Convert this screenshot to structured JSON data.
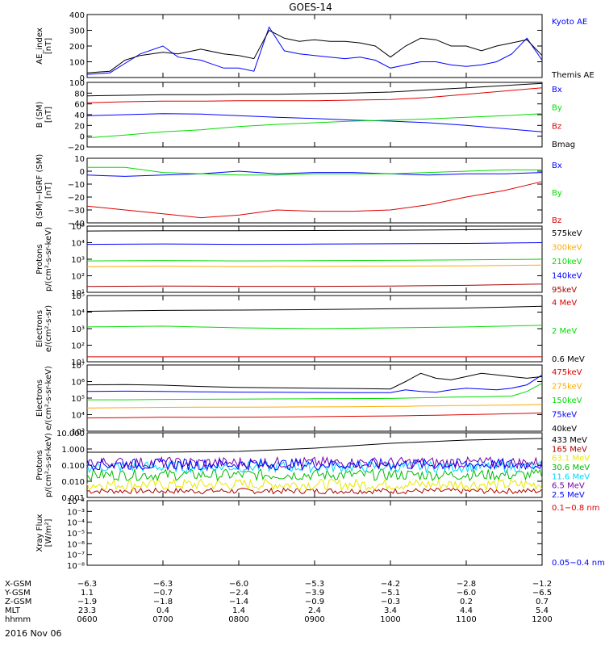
{
  "title": "GOES-14",
  "date_label": "2016 Nov 06",
  "colors": {
    "black": "#000000",
    "blue": "#0000ff",
    "green": "#00dd00",
    "red": "#dd0000",
    "orange": "#ffaa00",
    "darkred": "#aa0000",
    "cyan": "#00d8ff",
    "purple": "#7700aa",
    "yellow": "#e8e800",
    "darkgreen": "#00bb00"
  },
  "chart_data": [
    {
      "type": "line",
      "id": "ae",
      "ylabel": [
        "AE_index",
        "[nT]"
      ],
      "ylim": [
        0,
        400
      ],
      "yscale": "linear",
      "yticks": [
        "0",
        "100",
        "200",
        "300",
        "400"
      ],
      "yticks_values": [
        0,
        100,
        200,
        300,
        400
      ],
      "x": [
        0,
        0.3,
        0.5,
        0.7,
        1.0,
        1.2,
        1.5,
        1.8,
        2.0,
        2.2,
        2.4,
        2.6,
        2.8,
        3.0,
        3.2,
        3.4,
        3.6,
        3.8,
        4.0,
        4.2,
        4.4,
        4.6,
        4.8,
        5.0,
        5.2,
        5.4,
        5.6,
        5.8,
        6.0
      ],
      "series": [
        {
          "name": "Kyoto AE",
          "color": "#0000ff",
          "values": [
            20,
            30,
            90,
            150,
            200,
            130,
            110,
            60,
            60,
            40,
            320,
            170,
            150,
            140,
            130,
            120,
            130,
            110,
            60,
            80,
            100,
            100,
            80,
            70,
            80,
            100,
            150,
            250,
            110
          ]
        },
        {
          "name": "Themis AE",
          "color": "#000000",
          "values": [
            30,
            40,
            110,
            140,
            160,
            150,
            180,
            150,
            140,
            120,
            300,
            250,
            230,
            240,
            230,
            230,
            220,
            200,
            130,
            200,
            250,
            240,
            200,
            200,
            170,
            200,
            220,
            240,
            140
          ]
        }
      ]
    },
    {
      "type": "line",
      "id": "bsm",
      "ylabel": [
        "B (SM)",
        "[nT]"
      ],
      "ylim": [
        -20,
        100
      ],
      "yscale": "linear",
      "yticks": [
        "−20",
        "0",
        "20",
        "40",
        "60",
        "80",
        "100"
      ],
      "yticks_values": [
        -20,
        0,
        20,
        40,
        60,
        80,
        100
      ],
      "x": [
        0,
        0.5,
        1,
        1.5,
        2,
        2.5,
        3,
        3.5,
        4,
        4.5,
        5,
        5.5,
        6
      ],
      "series": [
        {
          "name": "Bx",
          "color": "#0000ff",
          "values": [
            38,
            40,
            42,
            41,
            38,
            35,
            33,
            30,
            28,
            25,
            20,
            14,
            8
          ]
        },
        {
          "name": "By",
          "color": "#00dd00",
          "values": [
            -3,
            2,
            8,
            12,
            18,
            22,
            25,
            28,
            30,
            32,
            35,
            38,
            42
          ]
        },
        {
          "name": "Bz",
          "color": "#dd0000",
          "values": [
            62,
            64,
            65,
            65,
            66,
            66,
            66,
            67,
            68,
            72,
            78,
            84,
            90
          ]
        },
        {
          "name": "Bmag",
          "color": "#000000",
          "values": [
            75,
            76,
            77,
            77,
            78,
            78,
            79,
            80,
            82,
            86,
            90,
            94,
            98
          ]
        }
      ]
    },
    {
      "type": "line",
      "id": "bigrf",
      "ylabel": [
        "B (SM)−IGRF (SM)",
        "[nT]"
      ],
      "ylim": [
        -40,
        10
      ],
      "yscale": "linear",
      "yticks": [
        "−40",
        "−30",
        "−20",
        "−10",
        "0",
        "10"
      ],
      "yticks_values": [
        -40,
        -30,
        -20,
        -10,
        0,
        10
      ],
      "x": [
        0,
        0.5,
        1,
        1.5,
        2,
        2.5,
        3,
        3.5,
        4,
        4.5,
        5,
        5.5,
        6
      ],
      "series": [
        {
          "name": "Bx",
          "color": "#0000ff",
          "values": [
            -3,
            -4,
            -3,
            -2,
            0,
            -2,
            -1,
            -1,
            -2,
            -3,
            -2,
            -2,
            -1
          ]
        },
        {
          "name": "By",
          "color": "#00dd00",
          "values": [
            3,
            3,
            -1,
            -2,
            -3,
            -3,
            -2,
            -2,
            -2,
            -1,
            0,
            1,
            1
          ]
        },
        {
          "name": "Bz",
          "color": "#dd0000",
          "values": [
            -27,
            -30,
            -33,
            -36,
            -34,
            -30,
            -31,
            -31,
            -30,
            -26,
            -20,
            -15,
            -8
          ]
        }
      ]
    },
    {
      "type": "line",
      "id": "prot1",
      "ylabel": [
        "Protons",
        "p/(cm²-s-sr-keV)"
      ],
      "ylim": [
        1,
        5
      ],
      "yscale": "log10",
      "yticks": [
        "10¹",
        "10²",
        "10³",
        "10⁴",
        "10⁵"
      ],
      "yticks_values": [
        1,
        2,
        3,
        4,
        5
      ],
      "x": [
        0,
        1,
        2,
        3,
        4,
        5,
        6
      ],
      "series": [
        {
          "name": "575keV",
          "color": "#000000",
          "values": [
            4.7,
            4.72,
            4.72,
            4.73,
            4.75,
            4.78,
            4.82
          ]
        },
        {
          "name": "300keV",
          "color": "#ffaa00",
          "values": [
            2.55,
            2.57,
            2.55,
            2.56,
            2.58,
            2.6,
            2.65
          ]
        },
        {
          "name": "210keV",
          "color": "#00dd00",
          "values": [
            2.9,
            2.92,
            2.9,
            2.91,
            2.93,
            2.96,
            3.0
          ]
        },
        {
          "name": "140keV",
          "color": "#0000ff",
          "values": [
            3.9,
            3.92,
            3.9,
            3.91,
            3.93,
            3.95,
            4.0
          ]
        },
        {
          "name": "95keV",
          "color": "#aa0000",
          "values": [
            1.35,
            1.38,
            1.36,
            1.36,
            1.38,
            1.42,
            1.5
          ]
        }
      ]
    },
    {
      "type": "line",
      "id": "elec1",
      "ylabel": [
        "Electrons",
        "e/(cm²-s-sr)"
      ],
      "ylim": [
        1,
        5
      ],
      "yscale": "log10",
      "yticks": [
        "10¹",
        "10²",
        "10³",
        "10⁴",
        "10⁵"
      ],
      "yticks_values": [
        1,
        2,
        3,
        4,
        5
      ],
      "x": [
        0,
        1,
        2,
        3,
        4,
        5,
        6
      ],
      "series": [
        {
          "name": "4 MeV",
          "color": "#dd0000",
          "values": [
            1.3,
            1.3,
            1.3,
            1.3,
            1.3,
            1.3,
            1.3
          ]
        },
        {
          "name": "2 MeV",
          "color": "#00dd00",
          "values": [
            3.1,
            3.15,
            3.05,
            3.0,
            3.05,
            3.1,
            3.2
          ]
        },
        {
          "name": "0.6 MeV",
          "color": "#000000",
          "values": [
            4.05,
            4.1,
            4.12,
            4.15,
            4.2,
            4.25,
            4.35
          ]
        }
      ]
    },
    {
      "type": "line",
      "id": "elec2",
      "ylabel": [
        "Electrons",
        "e/(cm²-s-sr-keV)"
      ],
      "ylim": [
        3,
        7
      ],
      "yscale": "log10",
      "yticks": [
        "10³",
        "10⁴",
        "10⁵",
        "10⁶",
        "10⁷"
      ],
      "yticks_values": [
        3,
        4,
        5,
        6,
        7
      ],
      "x": [
        0,
        0.5,
        1,
        1.5,
        2,
        2.5,
        3,
        3.5,
        4,
        4.2,
        4.4,
        4.6,
        4.8,
        5.0,
        5.2,
        5.4,
        5.6,
        5.8,
        6
      ],
      "series": [
        {
          "name": "475keV",
          "color": "#dd0000",
          "values": [
            3.8,
            3.82,
            3.85,
            3.84,
            3.85,
            3.86,
            3.88,
            3.9,
            3.92,
            3.93,
            3.95,
            3.96,
            3.98,
            4.0,
            4.02,
            4.04,
            4.06,
            4.08,
            4.1
          ]
        },
        {
          "name": "275keV",
          "color": "#ffaa00",
          "values": [
            4.4,
            4.42,
            4.44,
            4.45,
            4.45,
            4.46,
            4.47,
            4.48,
            4.5,
            4.5,
            4.52,
            4.53,
            4.55,
            4.55,
            4.56,
            4.57,
            4.58,
            4.6,
            4.62
          ]
        },
        {
          "name": "150keV",
          "color": "#00dd00",
          "values": [
            4.9,
            4.9,
            4.92,
            4.93,
            4.94,
            4.95,
            4.96,
            4.97,
            4.98,
            5.0,
            5.02,
            5.04,
            5.06,
            5.07,
            5.08,
            5.1,
            5.12,
            5.4,
            5.9
          ]
        },
        {
          "name": "75keV",
          "color": "#0000ff",
          "values": [
            5.4,
            5.42,
            5.4,
            5.38,
            5.36,
            5.35,
            5.34,
            5.33,
            5.33,
            5.5,
            5.4,
            5.35,
            5.5,
            5.6,
            5.55,
            5.5,
            5.6,
            5.8,
            6.4
          ]
        },
        {
          "name": "40keV",
          "color": "#000000",
          "values": [
            5.8,
            5.82,
            5.78,
            5.7,
            5.65,
            5.62,
            5.6,
            5.58,
            5.55,
            6.0,
            6.5,
            6.2,
            6.1,
            6.3,
            6.5,
            6.4,
            6.3,
            6.2,
            6.3
          ]
        }
      ]
    },
    {
      "type": "line",
      "id": "prot2",
      "ylabel": [
        "Protons",
        "p/(cm²-s-sr-keV)"
      ],
      "ylim": [
        -3,
        1
      ],
      "yscale": "log10",
      "yticks": [
        "0.001",
        "0.010",
        "0.100",
        "1.000",
        "10.000"
      ],
      "yticks_values": [
        -3,
        -2,
        -1,
        0,
        1
      ],
      "x": [
        0,
        1,
        2,
        3,
        4,
        5,
        6
      ],
      "series": [
        {
          "name": "433 MeV",
          "color": "#000000",
          "values": [
            -0.2,
            -0.2,
            -0.15,
            0.05,
            0.35,
            0.55,
            0.65
          ]
        },
        {
          "name": "165 MeV",
          "color": "#aa0000",
          "values": [
            -2.6,
            -2.6,
            -2.6,
            -2.6,
            -2.6,
            -2.6,
            -2.6
          ]
        },
        {
          "name": "63.1 MeV",
          "color": "#e8e800",
          "values": [
            -2.2,
            -2.2,
            -2.2,
            -2.2,
            -2.2,
            -2.2,
            -2.2
          ]
        },
        {
          "name": "30.6 MeV",
          "color": "#00bb00",
          "values": [
            -1.6,
            -1.6,
            -1.6,
            -1.6,
            -1.6,
            -1.6,
            -1.6
          ]
        },
        {
          "name": "11.6 MeV",
          "color": "#00d8ff",
          "values": [
            -1.1,
            -1.1,
            -1.1,
            -1.1,
            -1.1,
            -1.1,
            -1.1
          ]
        },
        {
          "name": "6.5 MeV",
          "color": "#7700aa",
          "values": [
            -0.85,
            -0.85,
            -0.85,
            -0.85,
            -0.85,
            -0.85,
            -0.85
          ]
        },
        {
          "name": "2.5 MeV",
          "color": "#0000ff",
          "values": [
            -0.95,
            -0.95,
            -0.95,
            -0.95,
            -0.95,
            -0.95,
            -0.95
          ]
        }
      ]
    },
    {
      "type": "line",
      "id": "xray",
      "ylabel": [
        "Xray Flux",
        "[W/m²]"
      ],
      "ylim": [
        -8,
        -2
      ],
      "yscale": "log10",
      "yticks": [
        "10⁻⁸",
        "10⁻⁷",
        "10⁻⁶",
        "10⁻⁵",
        "10⁻⁴",
        "10⁻³",
        "10⁻²"
      ],
      "yticks_values": [
        -8,
        -7,
        -6,
        -5,
        -4,
        -3,
        -2
      ],
      "x": [],
      "series": [
        {
          "name": "0.1−0.8 nm",
          "color": "#dd0000",
          "values": []
        },
        {
          "name": "0.05−0.4 nm",
          "color": "#0000ff",
          "values": []
        }
      ]
    }
  ],
  "xaxis": {
    "range": [
      0,
      6
    ],
    "rows": [
      {
        "label": "X-GSM",
        "values": [
          "−6.3",
          "−6.3",
          "−6.0",
          "−5.3",
          "−4.2",
          "−2.8",
          "−1.2"
        ]
      },
      {
        "label": "Y-GSM",
        "values": [
          "1.1",
          "−0.7",
          "−2.4",
          "−3.9",
          "−5.1",
          "−6.0",
          "−6.5"
        ]
      },
      {
        "label": "Z-GSM",
        "values": [
          "−1.9",
          "−1.8",
          "−1.4",
          "−0.9",
          "−0.3",
          "0.2",
          "0.7"
        ]
      },
      {
        "label": "MLT",
        "values": [
          "23.3",
          "0.4",
          "1.4",
          "2.4",
          "3.4",
          "4.4",
          "5.4"
        ]
      },
      {
        "label": "hhmm",
        "values": [
          "0600",
          "0700",
          "0800",
          "0900",
          "1000",
          "1100",
          "1200"
        ]
      }
    ]
  }
}
